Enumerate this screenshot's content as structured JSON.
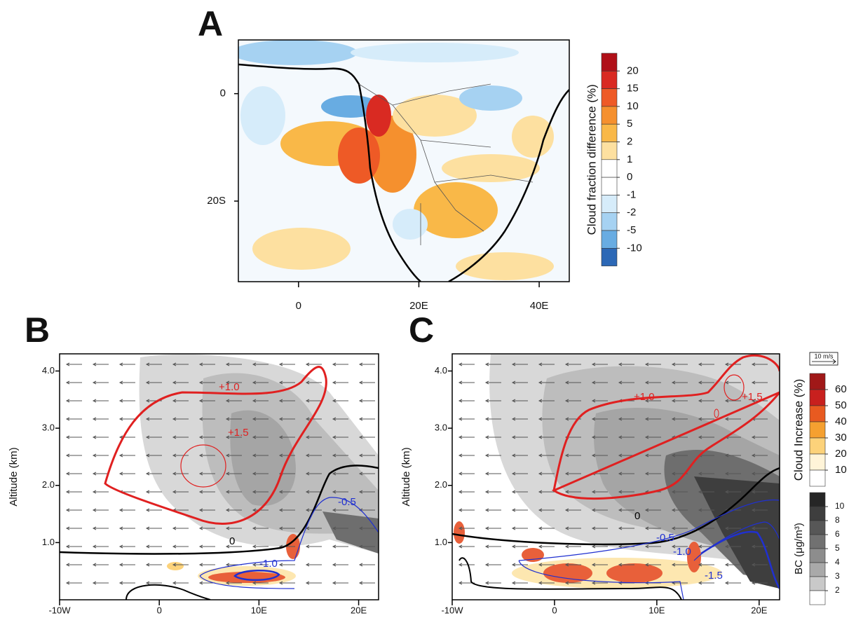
{
  "chart_data": [
    {
      "type": "map",
      "panel": "A",
      "xlim": [
        -10,
        45
      ],
      "ylim": [
        -35,
        10
      ],
      "xticks": [
        0,
        {
          "value": 20,
          "label": "20E"
        },
        {
          "value": 40,
          "label": "40E"
        }
      ],
      "yticks": [
        0,
        {
          "value": -20,
          "label": "20S"
        }
      ],
      "colorbar": {
        "title": "Cloud fraction difference (%)",
        "ticks": [
          20,
          15,
          10,
          5,
          2,
          1,
          0,
          -1,
          -2,
          -5,
          -10
        ],
        "colors": [
          "#b01018",
          "#d92a22",
          "#ee5a26",
          "#f5902e",
          "#f9b848",
          "#fde0a0",
          "#ffffff",
          "#ffffff",
          "#d6ecfa",
          "#a6d2f2",
          "#68ace2",
          "#2c68b6"
        ]
      }
    },
    {
      "type": "cross-section",
      "panel": "B",
      "ylabel": "Altitude (km)",
      "xlim": [
        -10,
        22
      ],
      "ylim": [
        0,
        4.3
      ],
      "xticks": [
        {
          "value": -10,
          "label": "-10W"
        },
        0,
        {
          "value": 10,
          "label": "10E"
        },
        {
          "value": 20,
          "label": "20E"
        }
      ],
      "yticks": [
        {
          "value": 1,
          "label": "1.0"
        },
        {
          "value": 2,
          "label": "2.0"
        },
        {
          "value": 3,
          "label": "3.0"
        },
        {
          "value": 4,
          "label": "4.0"
        }
      ],
      "annotations": [
        "+1.0",
        "+1.5",
        "0",
        "-0.5",
        "-1.0"
      ]
    },
    {
      "type": "cross-section",
      "panel": "C",
      "ylabel": "Altitude (km)",
      "xlim": [
        -10,
        22
      ],
      "ylim": [
        0,
        4.3
      ],
      "xticks": [
        {
          "value": -10,
          "label": "-10W"
        },
        0,
        {
          "value": 10,
          "label": "10E"
        },
        {
          "value": 20,
          "label": "20E"
        }
      ],
      "yticks": [
        {
          "value": 1,
          "label": "1.0"
        },
        {
          "value": 2,
          "label": "2.0"
        },
        {
          "value": 3,
          "label": "3.0"
        },
        {
          "value": 4,
          "label": "4.0"
        }
      ],
      "annotations": [
        "+1.0",
        "+1.5",
        "0",
        "-0.5",
        "-1.0",
        "-1.5"
      ],
      "vector_key": "10 m/s",
      "colorbars": [
        {
          "title": "Cloud Increase (%)",
          "ticks": [
            60,
            50,
            40,
            30,
            20,
            10
          ],
          "colors": [
            "#a01818",
            "#c8201e",
            "#e85a20",
            "#f5a030",
            "#fcd27a",
            "#fff4d8",
            "#ffffff"
          ]
        },
        {
          "title": "BC  (μg/m³)",
          "ticks": [
            10,
            8,
            6,
            5,
            4,
            3,
            2
          ],
          "colors": [
            "#262626",
            "#3e3e3e",
            "#575757",
            "#717171",
            "#8d8d8d",
            "#a9a9a9",
            "#c9c9c9",
            "#ffffff"
          ]
        }
      ]
    }
  ]
}
